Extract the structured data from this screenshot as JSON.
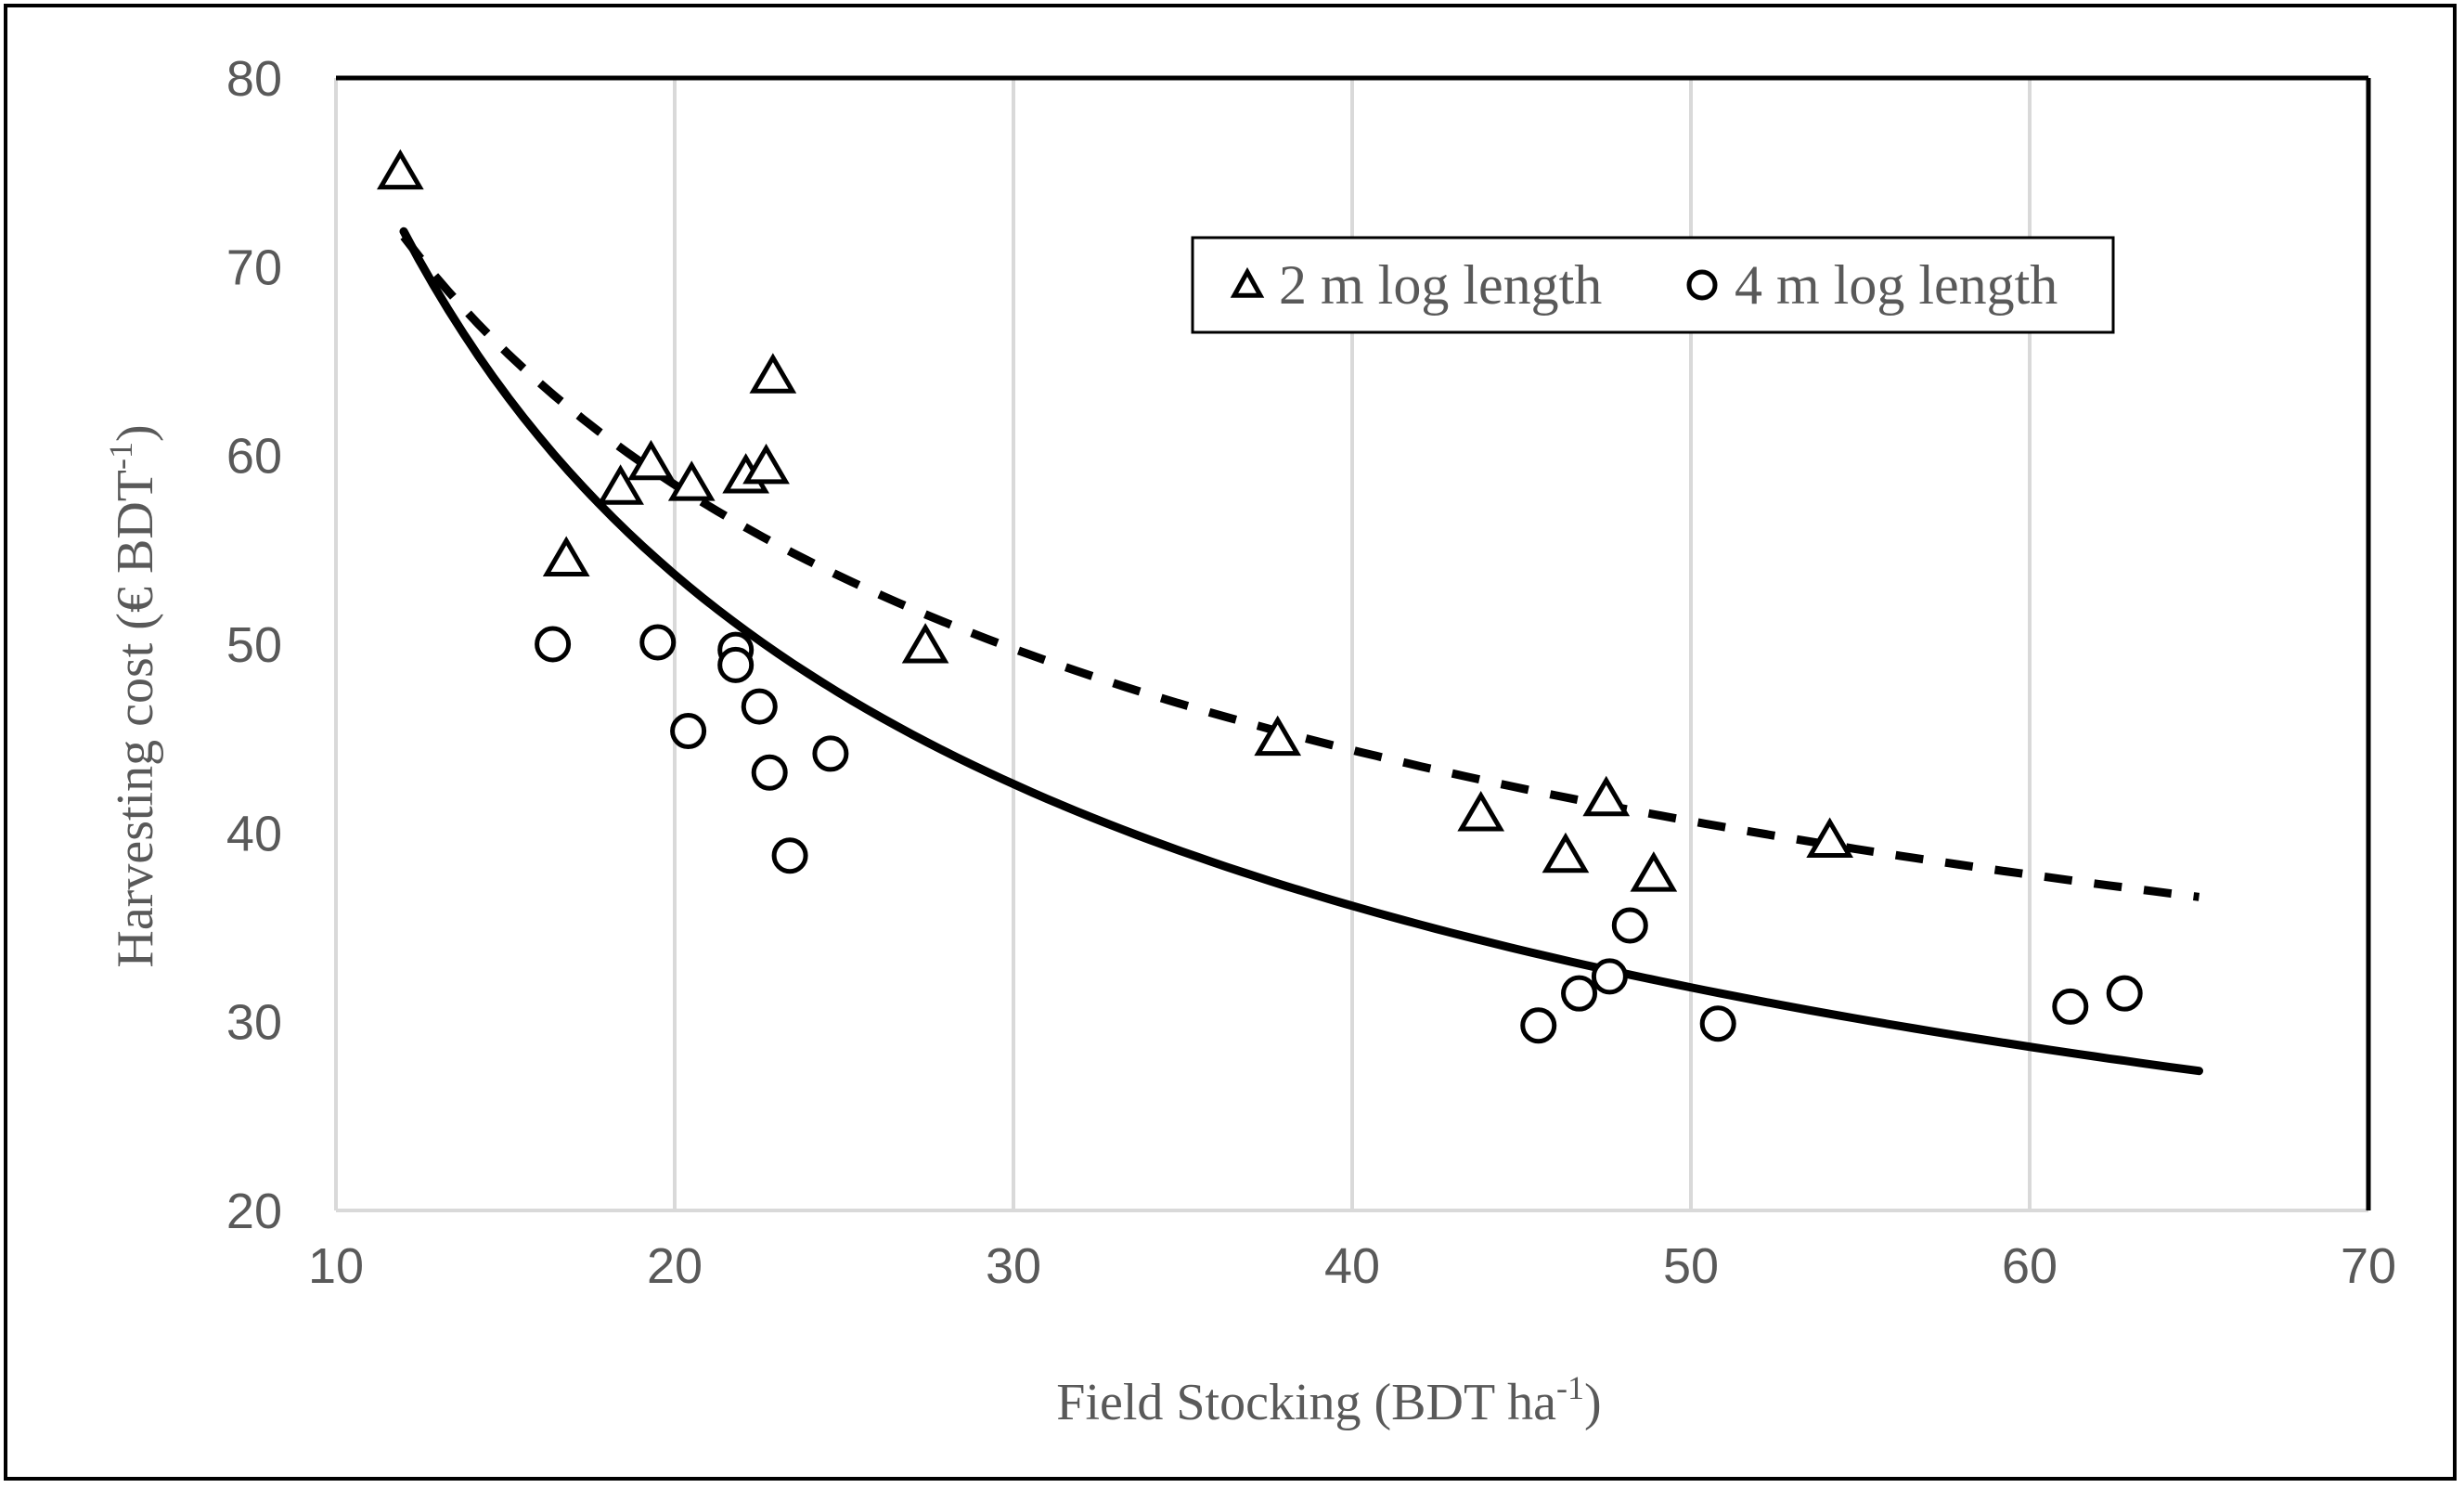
{
  "chart_data": {
    "type": "scatter",
    "title": "",
    "xlabel": "Field Stocking (BDT ha",
    "xlabel_sup": "-1",
    "xlabel_end": ")",
    "ylabel": "Harvesting cost (€ BDT",
    "ylabel_sup": "-1",
    "ylabel_end": ")",
    "xlim": [
      10,
      70
    ],
    "ylim": [
      20,
      80
    ],
    "xticks": [
      10,
      20,
      30,
      40,
      50,
      60,
      70
    ],
    "yticks": [
      20,
      30,
      40,
      50,
      60,
      70,
      80
    ],
    "grid": "vertical",
    "legend_position": "top-right",
    "series": [
      {
        "name": "2 m log length",
        "marker": "triangle",
        "trendline": "dashed",
        "trend_fit": {
          "model": "power",
          "a": 192.0,
          "b": -0.397,
          "x_from": 12,
          "x_to": 65
        },
        "points": [
          {
            "x": 11.9,
            "y": 75.0
          },
          {
            "x": 16.8,
            "y": 54.5
          },
          {
            "x": 18.4,
            "y": 58.3
          },
          {
            "x": 19.3,
            "y": 59.6
          },
          {
            "x": 20.5,
            "y": 58.5
          },
          {
            "x": 22.1,
            "y": 58.9
          },
          {
            "x": 22.7,
            "y": 59.4
          },
          {
            "x": 22.9,
            "y": 64.2
          },
          {
            "x": 27.4,
            "y": 49.9
          },
          {
            "x": 37.8,
            "y": 45.0
          },
          {
            "x": 43.8,
            "y": 41.0
          },
          {
            "x": 46.3,
            "y": 38.8
          },
          {
            "x": 47.5,
            "y": 41.8
          },
          {
            "x": 48.9,
            "y": 37.8
          },
          {
            "x": 54.1,
            "y": 39.6
          }
        ]
      },
      {
        "name": "4 m log length",
        "marker": "circle",
        "trendline": "solid",
        "trend_fit": {
          "model": "power",
          "a": 297.0,
          "b": -0.571,
          "x_from": 12,
          "x_to": 65
        },
        "points": [
          {
            "x": 16.4,
            "y": 50.0
          },
          {
            "x": 19.5,
            "y": 50.1
          },
          {
            "x": 20.4,
            "y": 45.4
          },
          {
            "x": 21.8,
            "y": 49.7
          },
          {
            "x": 21.8,
            "y": 48.9
          },
          {
            "x": 22.5,
            "y": 46.7
          },
          {
            "x": 22.8,
            "y": 43.2
          },
          {
            "x": 23.4,
            "y": 38.8
          },
          {
            "x": 24.6,
            "y": 44.2
          },
          {
            "x": 45.5,
            "y": 29.8
          },
          {
            "x": 46.7,
            "y": 31.5
          },
          {
            "x": 47.6,
            "y": 32.4
          },
          {
            "x": 48.2,
            "y": 35.1
          },
          {
            "x": 50.8,
            "y": 29.9
          },
          {
            "x": 61.2,
            "y": 30.8
          },
          {
            "x": 62.8,
            "y": 31.5
          }
        ]
      }
    ]
  },
  "colors": {
    "text": "#595959",
    "grid": "#d9d9d9",
    "ink": "#000000",
    "background": "#ffffff"
  }
}
